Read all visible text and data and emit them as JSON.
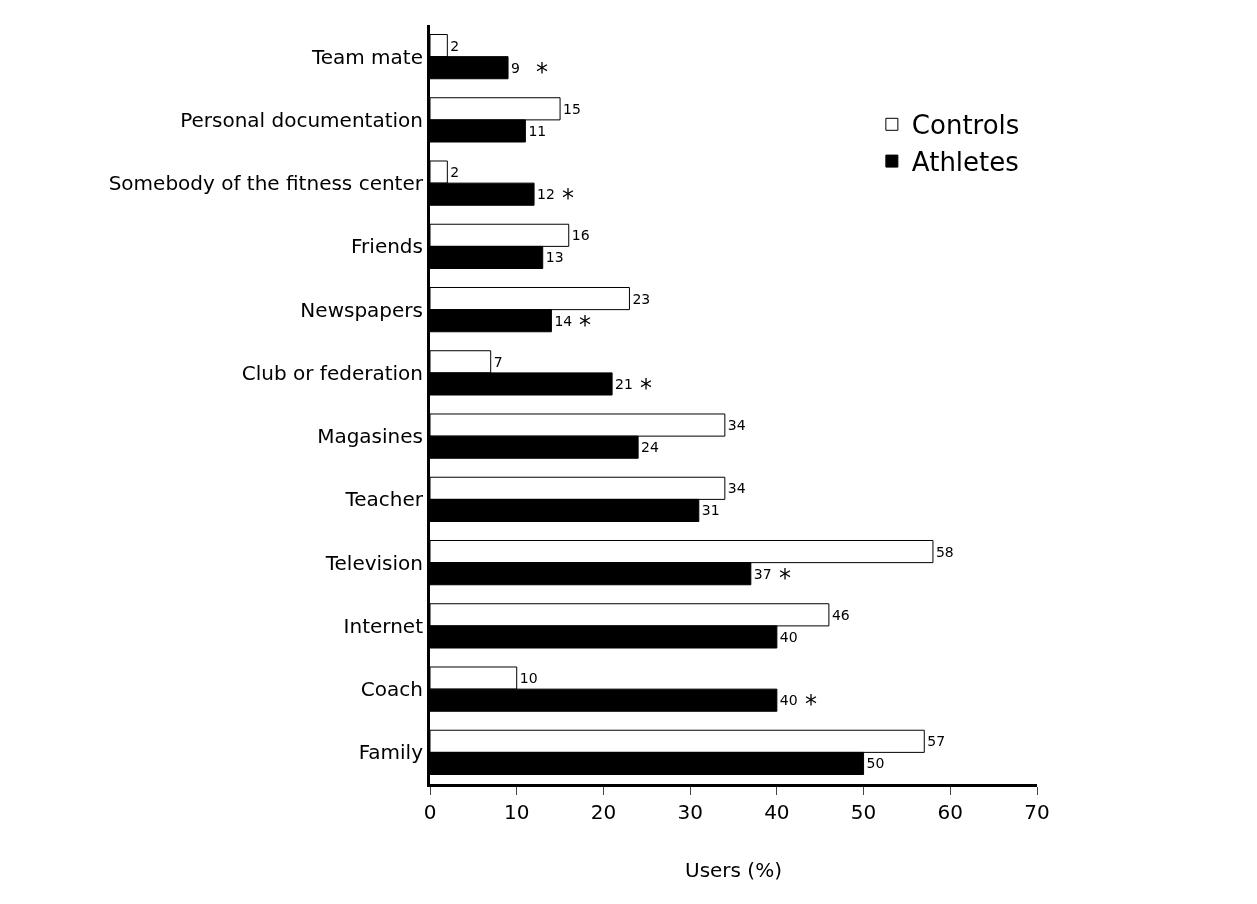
{
  "chart_data": {
    "type": "bar",
    "orientation": "horizontal",
    "xlabel": "Users (%)",
    "categories": [
      "Team mate",
      "Personal documentation",
      "Somebody of the fitness center",
      "Friends",
      "Newspapers",
      "Club or federation",
      "Magasines",
      "Teacher",
      "Television",
      "Internet",
      "Coach",
      "Family"
    ],
    "series": [
      {
        "name": "Controls",
        "color": "#ffffff",
        "values": [
          2,
          15,
          2,
          16,
          23,
          7,
          34,
          34,
          58,
          46,
          10,
          57
        ]
      },
      {
        "name": "Athletes",
        "color": "#000000",
        "values": [
          9,
          11,
          12,
          13,
          14,
          21,
          24,
          31,
          37,
          40,
          40,
          50
        ]
      }
    ],
    "xlim": [
      0,
      70
    ],
    "xticks": [
      0,
      10,
      20,
      30,
      40,
      50,
      60,
      70
    ],
    "data_labels": true,
    "legend": "top right",
    "annotations": [
      {
        "text": "*",
        "x": 9,
        "y": "Team mate"
      },
      {
        "text": "*",
        "x": 12,
        "y": "Somebody of the fitness center"
      },
      {
        "text": "*",
        "x": 14,
        "y": "Newspapers"
      },
      {
        "text": "*",
        "x": 21,
        "y": "Club or federation"
      },
      {
        "text": "*",
        "x": 37,
        "y": "Television"
      },
      {
        "text": "*",
        "x": 40,
        "y": "Coach"
      }
    ]
  }
}
